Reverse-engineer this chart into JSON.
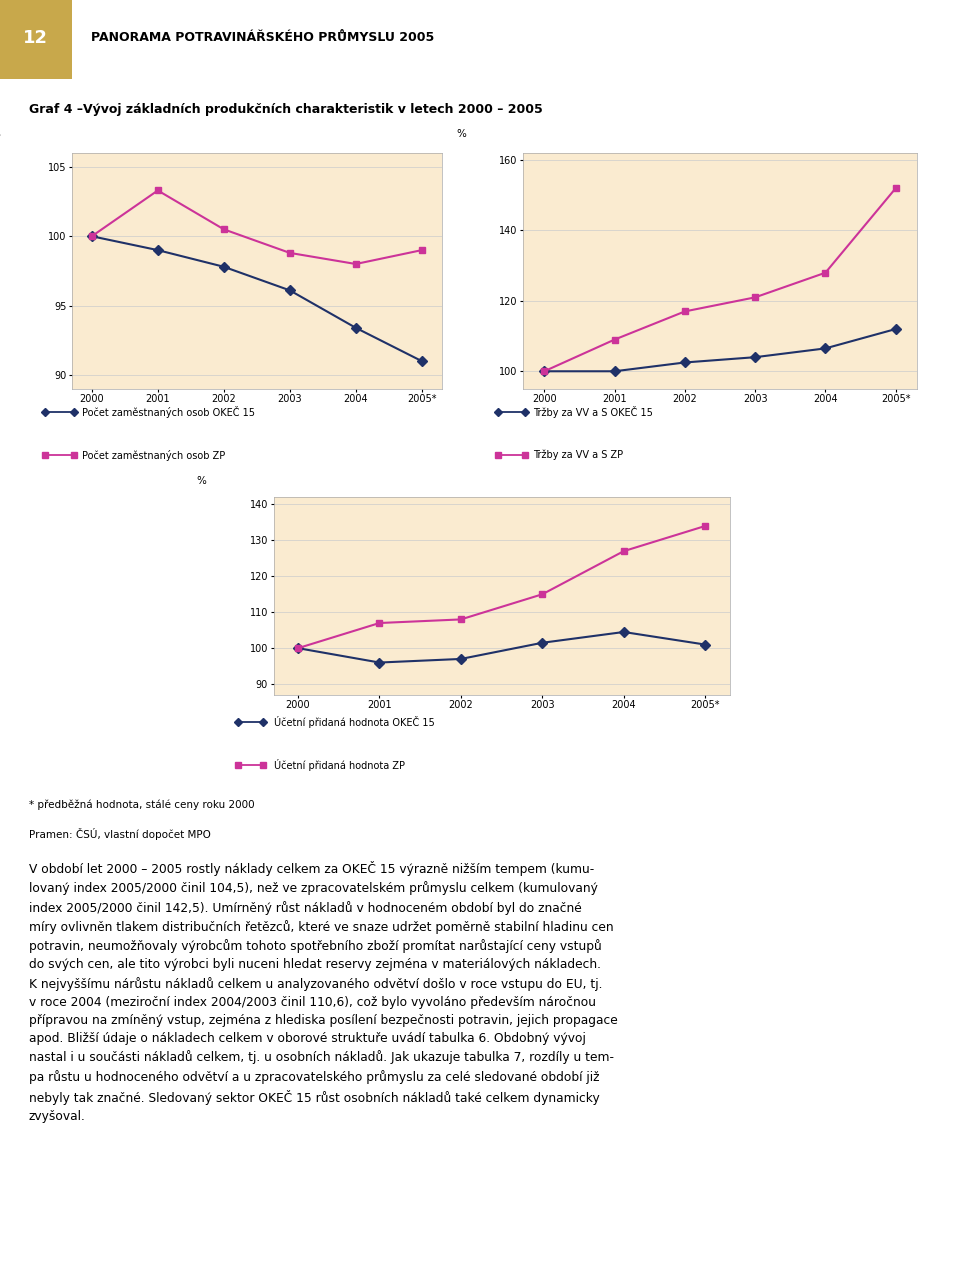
{
  "page_header": "PANORAMA POTRAVINÁŘSKÉHO PRŮMYSLU 2005",
  "page_number": "12",
  "chart_title": "Graf 4 –Vývoj základních produkčních charakteristik v letech 2000 – 2005",
  "years": [
    "2000",
    "2001",
    "2002",
    "2003",
    "2004",
    "2005*"
  ],
  "chart1": {
    "ylabel": "%",
    "ylim": [
      89,
      106
    ],
    "yticks": [
      90,
      95,
      100,
      105
    ],
    "series1": {
      "label": "Počet zaměstnaných osob OKEČ 15",
      "values": [
        100,
        99.0,
        97.8,
        96.1,
        93.4,
        91.0
      ],
      "color": "#1f3168",
      "marker": "D",
      "markersize": 5
    },
    "series2": {
      "label": "Počet zaměstnaných osob ZP",
      "values": [
        100.0,
        103.3,
        100.5,
        98.8,
        98.0,
        99.0
      ],
      "color": "#cc3399",
      "marker": "s",
      "markersize": 5
    }
  },
  "chart2": {
    "ylabel": "%",
    "ylim": [
      95,
      162
    ],
    "yticks": [
      100,
      120,
      140,
      160
    ],
    "series1": {
      "label": "Tržby za VV a S OKEČ 15",
      "values": [
        100,
        100.0,
        102.5,
        104.0,
        106.5,
        112.0
      ],
      "color": "#1f3168",
      "marker": "D",
      "markersize": 5
    },
    "series2": {
      "label": "Tržby za VV a S ZP",
      "values": [
        100,
        109.0,
        117.0,
        121.0,
        128.0,
        152.0
      ],
      "color": "#cc3399",
      "marker": "s",
      "markersize": 5
    }
  },
  "chart3": {
    "ylabel": "%",
    "ylim": [
      87,
      142
    ],
    "yticks": [
      90,
      100,
      110,
      120,
      130,
      140
    ],
    "series1": {
      "label": "Účetní přidaná hodnota OKEČ 15",
      "values": [
        100,
        96.0,
        97.0,
        101.5,
        104.5,
        101.0
      ],
      "color": "#1f3168",
      "marker": "D",
      "markersize": 5
    },
    "series2": {
      "label": "Účetní přidaná hodnota ZP",
      "values": [
        100,
        107.0,
        108.0,
        115.0,
        127.0,
        134.0
      ],
      "color": "#cc3399",
      "marker": "s",
      "markersize": 5
    }
  },
  "footnote1": "* předběžná hodnota, stálé ceny roku 2000",
  "footnote2": "Pramen: ČSÚ, vlastní dopočet MPO",
  "body_text": "V období let 2000 – 2005 rostly náklady celkem za OKEČ 15 výrazně nižším tempem (kumu-\nlovaný index 2005/2000 činil 104,5), než ve zpracovatelském průmyslu celkem (kumulovaný\nindex 2005/2000 činil 142,5). Umírněný růst nákladů v hodnoceném období byl do značné\nmíry ovlivněn tlakem distribučních řetězců, které ve snaze udržet poměrně stabilní hladinu cen\npotravin, neumožňovaly výrobcům tohoto spotřebního zboží promítat narůstající ceny vstupů\ndo svých cen, ale tito výrobci byli nuceni hledat reservy zejména v materiálových nákladech.\nK nejvyššímu nárůstu nákladů celkem u analyzovaného odvětví došlo v roce vstupu do EU, tj.\nv roce 2004 (meziroční index 2004/2003 činil 110,6), což bylo vyvoláno především náročnou\npřípravou na zmíněný vstup, zejména z hlediska posílení bezpečnosti potravin, jejich propagace\napod. Bližší údaje o nákladech celkem v oborové struktuře uvádí tabulka 6. Obdobný vývoj\nnastal i u součásti nákladů celkem, tj. u osobních nákladů. Jak ukazuje tabulka 7, rozdíly u tem-\npa růstu u hodnoceného odvětví a u zpracovatelského průmyslu za celé sledované období již\nnebyly tak značné. Sledovaný sektor OKEČ 15 růst osobních nákladů také celkem dynamicky\nzvyšoval.",
  "background_color": "#faebd0",
  "chart_bg_color": "#faebd0",
  "header_color": "#c8a84b",
  "page_bg_color": "#ffffff",
  "border_color": "#b0a080"
}
